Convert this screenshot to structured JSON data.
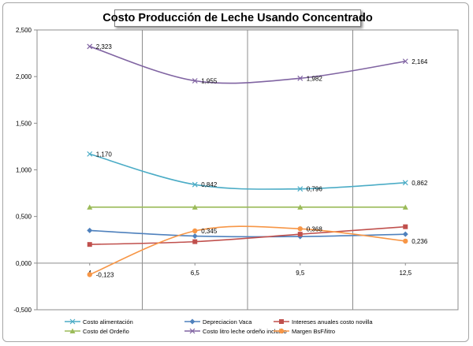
{
  "chart_data": {
    "type": "line",
    "title": "Costo Producción de Leche Usando Concentrado",
    "x": [
      "4",
      "6,5",
      "9,5",
      "12,5"
    ],
    "y_ticks": [
      "2,500",
      "2,000",
      "1,500",
      "1,000",
      "0,500",
      "0,000",
      "-0,500"
    ],
    "ylim": [
      -0.5,
      2.5
    ],
    "grid": "vertical",
    "legend_position": "bottom",
    "series": [
      {
        "name": "Costo alimentación",
        "values": [
          1.17,
          0.842,
          0.796,
          0.862
        ],
        "labels": [
          "1,170",
          "0,842",
          "0,796",
          "0,862"
        ],
        "color": "#4bacc6",
        "marker": "x"
      },
      {
        "name": "Depreciacion Vaca",
        "values": [
          0.35,
          0.29,
          0.285,
          0.31
        ],
        "labels": [],
        "color": "#4f81bd",
        "marker": "diamond"
      },
      {
        "name": "Intereses anuales costo novilla",
        "values": [
          0.2,
          0.23,
          0.31,
          0.39
        ],
        "labels": [],
        "color": "#c0504d",
        "marker": "square"
      },
      {
        "name": "Costo del Ordeño",
        "values": [
          0.6,
          0.6,
          0.6,
          0.6
        ],
        "labels": [],
        "color": "#9bbb59",
        "marker": "triangle"
      },
      {
        "name": "Costo litro leche ordeño incluido",
        "values": [
          2.323,
          1.955,
          1.982,
          2.164
        ],
        "labels": [
          "2,323",
          "1,955",
          "1,982",
          "2,164"
        ],
        "color": "#8064a2",
        "marker": "x"
      },
      {
        "name": "Margen BsF/litro",
        "values": [
          -0.123,
          0.345,
          0.368,
          0.236
        ],
        "labels": [
          "-0,123",
          "0,345",
          "0,368",
          "0,236"
        ],
        "color": "#f79646",
        "marker": "circle"
      }
    ]
  }
}
